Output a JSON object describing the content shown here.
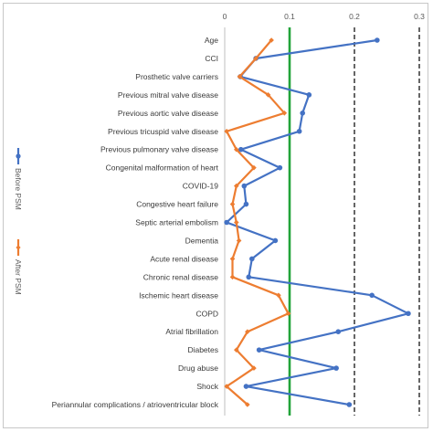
{
  "chart_data": {
    "type": "line",
    "orientation": "vertical-categories",
    "x_ticks": [
      "0",
      "0.1",
      "0.2",
      "0.3"
    ],
    "xlim": [
      0,
      0.3
    ],
    "reference_lines": [
      {
        "x": 0.1,
        "style": "solid",
        "color": "#22a33a"
      },
      {
        "x": 0.2,
        "style": "dashed",
        "color": "#000000"
      },
      {
        "x": 0.3,
        "style": "dashed",
        "color": "#000000"
      }
    ],
    "categories": [
      "Age",
      "CCI",
      "Prosthetic valve carriers",
      "Previous mitral valve disease",
      "Previous aortic valve disease",
      "Previous tricuspid valve disease",
      "Previous pulmonary valve disease",
      "Congenital malformation of heart",
      "COVID-19",
      "Congestive heart failure",
      "Septic arterial embolism",
      "Dementia",
      "Acute renal disease",
      "Chronic renal disease",
      "Ischemic heart disease",
      "COPD",
      "Atrial fibrillation",
      "Diabetes",
      "Drug abuse",
      "Shock",
      "Periannular complications / atrioventricular block"
    ],
    "series": [
      {
        "name": "Before PSM",
        "color": "#4472c4",
        "values": [
          0.235,
          0.048,
          0.024,
          0.13,
          0.12,
          0.115,
          0.025,
          0.085,
          0.03,
          0.033,
          0.003,
          0.078,
          0.042,
          0.037,
          0.227,
          0.283,
          0.175,
          0.053,
          0.172,
          0.033,
          0.192
        ]
      },
      {
        "name": "After PSM",
        "color": "#ed7d31",
        "values": [
          0.072,
          0.048,
          0.023,
          0.067,
          0.092,
          0.003,
          0.018,
          0.045,
          0.018,
          0.012,
          0.018,
          0.022,
          0.012,
          0.012,
          0.083,
          0.098,
          0.035,
          0.018,
          0.045,
          0.003,
          0.035
        ]
      }
    ],
    "legend_position": "left",
    "grid": false
  }
}
